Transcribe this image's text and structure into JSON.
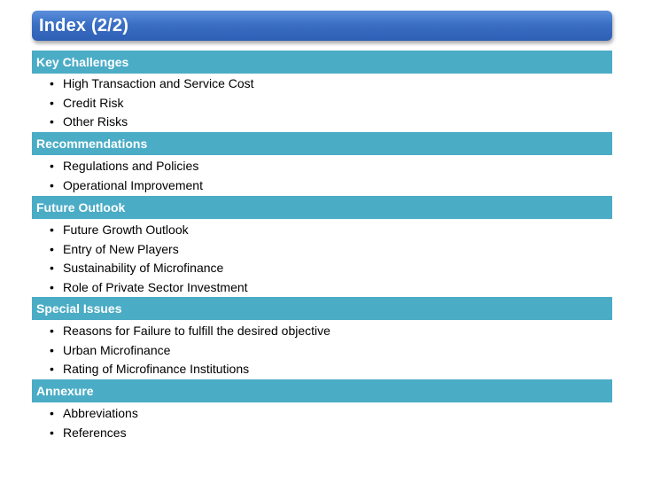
{
  "title": "Index (2/2)",
  "sections": [
    {
      "heading": "Key Challenges",
      "items": [
        "High Transaction and Service Cost",
        "Credit Risk",
        "Other Risks"
      ]
    },
    {
      "heading": "Recommendations",
      "items": [
        "Regulations and Policies",
        "Operational Improvement"
      ]
    },
    {
      "heading": "Future Outlook",
      "items": [
        "Future Growth Outlook",
        "Entry of New Players",
        "Sustainability of Microfinance",
        "Role of Private Sector Investment"
      ]
    },
    {
      "heading": "Special Issues",
      "items": [
        "Reasons for Failure to fulfill the desired objective",
        "Urban Microfinance",
        "Rating of Microfinance Institutions"
      ]
    },
    {
      "heading": "Annexure",
      "items": [
        "Abbreviations",
        "References"
      ]
    }
  ],
  "bullet_char": "•",
  "colors": {
    "title_bar": "#3b6fc4",
    "section_bar": "#4bacc6",
    "heading_text": "#ffffff",
    "body_text": "#000000"
  }
}
